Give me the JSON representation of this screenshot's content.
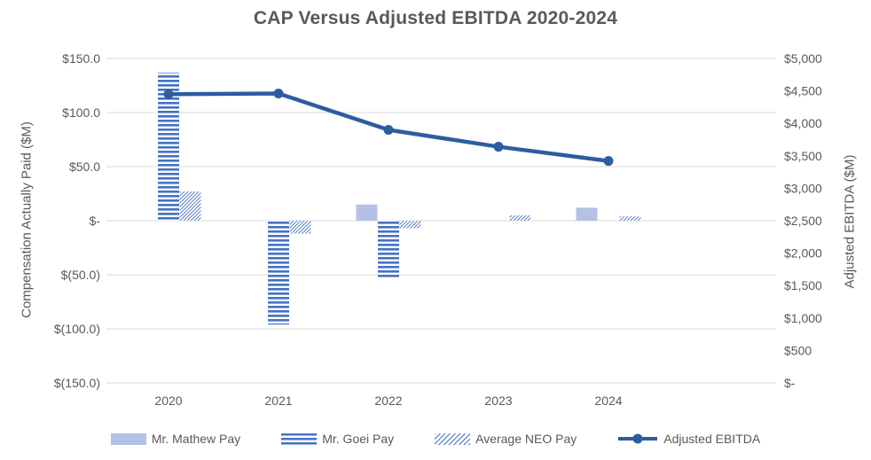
{
  "chart_data": {
    "type": "combo-bar-line",
    "title": "CAP Versus Adjusted EBITDA 2020-2024",
    "categories": [
      "2020",
      "2021",
      "2022",
      "2023",
      "2024"
    ],
    "series": [
      {
        "name": "Mr. Mathew Pay",
        "type": "bar",
        "axis": "left",
        "fill": "solid",
        "color": "#B4C1E4",
        "values": [
          null,
          null,
          15,
          null,
          12
        ]
      },
      {
        "name": "Mr. Goei Pay",
        "type": "bar",
        "axis": "left",
        "fill": "horizontal-stripes",
        "color": "#4472C4",
        "values": [
          137,
          -96,
          -53,
          null,
          null
        ]
      },
      {
        "name": "Average NEO Pay",
        "type": "bar",
        "axis": "left",
        "fill": "diagonal-stripes",
        "color": "#4472C4",
        "values": [
          27,
          -12,
          -7,
          5,
          4
        ]
      },
      {
        "name": "Adjusted EBITDA",
        "type": "line",
        "axis": "right",
        "fill": "solid-line-markers",
        "color": "#2E5CA0",
        "values": [
          4450,
          4460,
          3900,
          3640,
          3420
        ]
      }
    ],
    "left_axis": {
      "title": "Compensation Actually Paid ($M)",
      "min": -150,
      "max": 150,
      "ticks": [
        150,
        100,
        50,
        0,
        -50,
        -100,
        -150
      ],
      "tick_labels": [
        "$150.0",
        "$100.0",
        "$50.0",
        "$-",
        "$(50.0)",
        "$(100.0)",
        "$(150.0)"
      ]
    },
    "right_axis": {
      "title": "Adjusted EBITDA ($M)",
      "min": 0,
      "max": 5000,
      "ticks": [
        5000,
        4500,
        4000,
        3500,
        3000,
        2500,
        2000,
        1500,
        1000,
        500,
        0
      ],
      "tick_labels": [
        "$5,000",
        "$4,500",
        "$4,000",
        "$3,500",
        "$3,000",
        "$2,500",
        "$2,000",
        "$1,500",
        "$1,000",
        "$500",
        "$-"
      ]
    },
    "legend": {
      "position": "bottom",
      "entries": [
        "Mr. Mathew Pay",
        "Mr. Goei Pay",
        "Average NEO Pay",
        "Adjusted EBITDA"
      ]
    },
    "grid": {
      "horizontal": true,
      "vertical": false
    },
    "colors": {
      "grid": "#D9D9D9",
      "text": "#595959",
      "title": "#595959",
      "background": "#FFFFFF"
    }
  }
}
